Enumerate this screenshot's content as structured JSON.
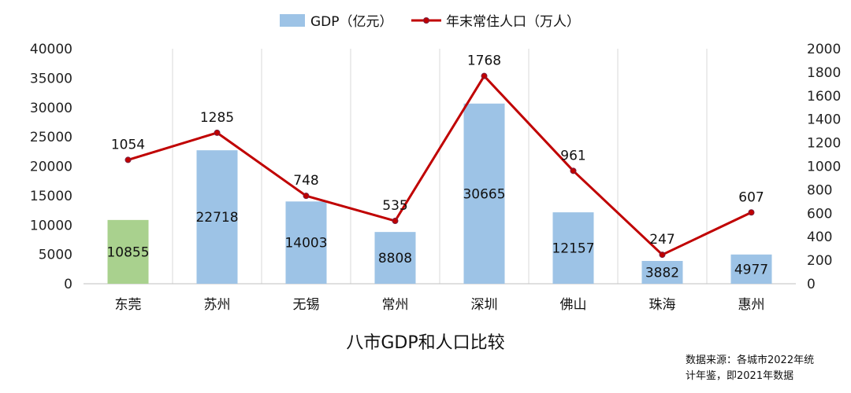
{
  "chart_data": {
    "type": "bar",
    "title": "八市GDP和人口比较",
    "categories": [
      "东莞",
      "苏州",
      "无锡",
      "常州",
      "深圳",
      "佛山",
      "珠海",
      "惠州"
    ],
    "series": [
      {
        "name": "GDP（亿元）",
        "type": "bar",
        "axis": "left",
        "values": [
          10855,
          22718,
          14003,
          8808,
          30665,
          12157,
          3882,
          4977
        ],
        "colors": [
          "#a9d18e",
          "#9dc3e6",
          "#9dc3e6",
          "#9dc3e6",
          "#9dc3e6",
          "#9dc3e6",
          "#9dc3e6",
          "#9dc3e6"
        ]
      },
      {
        "name": "年末常住人口（万人）",
        "type": "line",
        "axis": "right",
        "values": [
          1054,
          1285,
          748,
          535,
          1768,
          961,
          247,
          607
        ],
        "color": "#c00000"
      }
    ],
    "ylim_left": [
      0,
      40000
    ],
    "ylim_right": [
      0,
      2000
    ],
    "yticks_left": [
      0,
      5000,
      10000,
      15000,
      20000,
      25000,
      30000,
      35000,
      40000
    ],
    "yticks_right": [
      0,
      200,
      400,
      600,
      800,
      1000,
      1200,
      1400,
      1600,
      1800,
      2000
    ],
    "grid": "vertical",
    "legend_position": "top-center"
  },
  "source_note": [
    "数据来源：各城市2022年统",
    "计年鉴，即2021年数据"
  ]
}
